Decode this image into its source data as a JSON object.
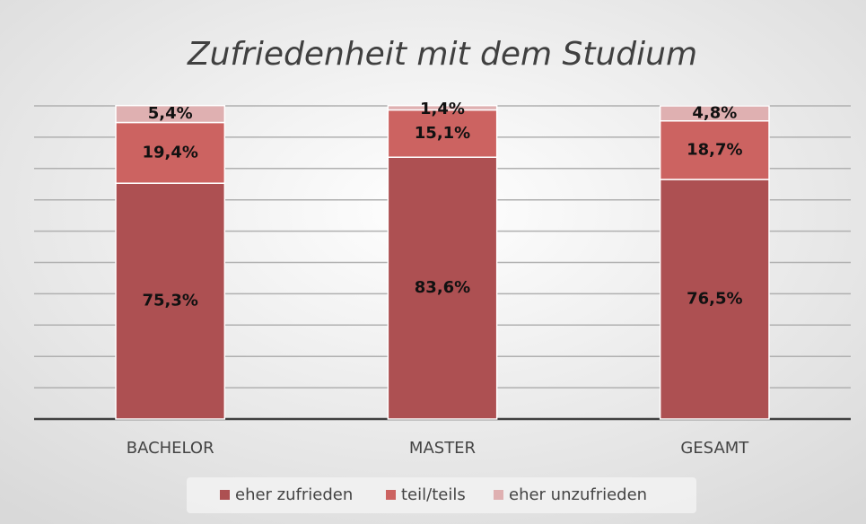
{
  "chart_data": {
    "type": "stacked_bar",
    "title": "Zufriedenheit mit dem Studium",
    "categories": [
      "BACHELOR",
      "MASTER",
      "GESAMT"
    ],
    "series": [
      {
        "name": "eher zufrieden",
        "color": "#ad5052",
        "values": [
          75.3,
          83.6,
          76.5
        ],
        "value_labels": [
          "75,3%",
          "83,6%",
          "76,5%"
        ]
      },
      {
        "name": "teil/teils",
        "color": "#cc6361",
        "values": [
          19.4,
          15.1,
          18.7
        ],
        "value_labels": [
          "19,4%",
          "15,1%",
          "18,7%"
        ]
      },
      {
        "name": "eher unzufrieden",
        "color": "#dfb0b1",
        "values": [
          5.4,
          1.4,
          4.8
        ],
        "value_labels": [
          "5,4%",
          "1,4%",
          "4,8%"
        ]
      }
    ],
    "ylim": [
      0,
      100
    ],
    "yticks": [
      0,
      10,
      20,
      30,
      40,
      50,
      60,
      70,
      80,
      90,
      100
    ],
    "grid": true,
    "legend": "bottom"
  }
}
